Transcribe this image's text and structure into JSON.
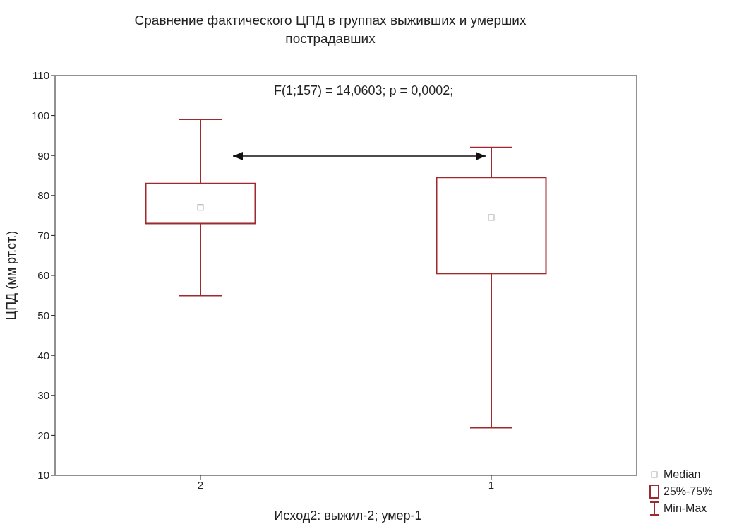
{
  "chart_data": {
    "type": "box",
    "title": "Сравнение фактического ЦПД в группах выживших и умерших пострадавших",
    "xlabel": "Исход2: выжил-2; умер-1",
    "ylabel": "ЦПД (мм рт.ст.)",
    "categories": [
      "2",
      "1"
    ],
    "boxes": [
      {
        "low": 55,
        "q1": 73,
        "median": 77,
        "q3": 83,
        "high": 99
      },
      {
        "low": 22,
        "q1": 60.5,
        "median": 74.5,
        "q3": 84.5,
        "high": 92
      }
    ],
    "color": "#9e2a2f",
    "ylim": [
      10,
      110
    ],
    "yticks": [
      10,
      20,
      30,
      40,
      50,
      60,
      70,
      80,
      90,
      100,
      110
    ],
    "annotations": [
      "F(1;157) = 14,0603; p = 0,0002;",
      "Median",
      "25%-75%",
      "Min-Max"
    ]
  }
}
